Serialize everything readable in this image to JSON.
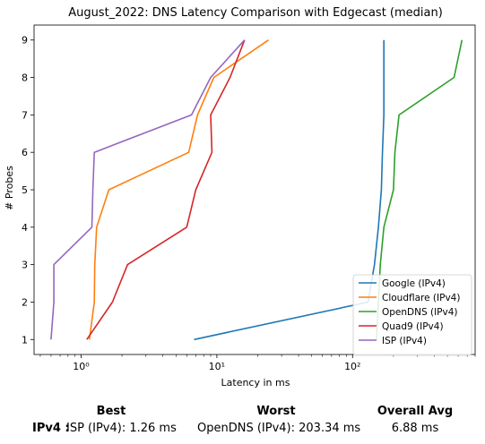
{
  "chart_data": {
    "type": "line",
    "title": "August_2022: DNS Latency Comparison with Edgecast (median)",
    "xlabel": "Latency in ms",
    "ylabel": "# Probes",
    "xscale": "log",
    "xlim": [
      0.45,
      800
    ],
    "ylim": [
      0.6,
      9.4
    ],
    "yticks": [
      1,
      2,
      3,
      4,
      5,
      6,
      7,
      8,
      9
    ],
    "xticks": [
      {
        "value": 1,
        "label": "10⁰"
      },
      {
        "value": 10,
        "label": "10¹"
      },
      {
        "value": 100,
        "label": "10²"
      }
    ],
    "legend_position": "lower-right",
    "grid": false,
    "series": [
      {
        "name": "Google (IPv4)",
        "color": "#1f77b4",
        "points": [
          [
            6.8,
            1
          ],
          [
            130,
            2
          ],
          [
            145,
            3
          ],
          [
            155,
            4
          ],
          [
            163,
            5
          ],
          [
            166,
            6
          ],
          [
            170,
            7
          ],
          [
            170,
            8
          ],
          [
            170,
            9
          ]
        ]
      },
      {
        "name": "Cloudflare (IPv4)",
        "color": "#ff7f0e",
        "points": [
          [
            1.15,
            1
          ],
          [
            1.25,
            2
          ],
          [
            1.26,
            3
          ],
          [
            1.3,
            4
          ],
          [
            1.6,
            5
          ],
          [
            6.2,
            6
          ],
          [
            7.2,
            7
          ],
          [
            9.5,
            8
          ],
          [
            24,
            9
          ]
        ]
      },
      {
        "name": "OpenDNS (IPv4)",
        "color": "#2ca02c",
        "points": [
          [
            150,
            1
          ],
          [
            155,
            2
          ],
          [
            160,
            3
          ],
          [
            170,
            4
          ],
          [
            200,
            5
          ],
          [
            205,
            6
          ],
          [
            220,
            7
          ],
          [
            560,
            8
          ],
          [
            640,
            9
          ]
        ]
      },
      {
        "name": "Quad9 (IPv4)",
        "color": "#d62728",
        "points": [
          [
            1.1,
            1
          ],
          [
            1.7,
            2
          ],
          [
            2.2,
            3
          ],
          [
            6.0,
            4
          ],
          [
            7.0,
            5
          ],
          [
            9.2,
            6
          ],
          [
            9.0,
            7
          ],
          [
            12.5,
            8
          ],
          [
            16,
            9
          ]
        ]
      },
      {
        "name": "ISP (IPv4)",
        "color": "#9467bd",
        "points": [
          [
            0.6,
            1
          ],
          [
            0.63,
            2
          ],
          [
            0.63,
            3
          ],
          [
            1.2,
            4
          ],
          [
            1.22,
            5
          ],
          [
            1.25,
            6
          ],
          [
            6.5,
            7
          ],
          [
            9.0,
            8
          ],
          [
            16,
            9
          ]
        ]
      }
    ]
  },
  "stats": {
    "headers": {
      "best": "Best",
      "worst": "Worst",
      "avg": "Overall Avg"
    },
    "row_label": "IPv4 :",
    "best": "ISP (IPv4): 1.26 ms",
    "worst": "OpenDNS (IPv4): 203.34 ms",
    "avg": "6.88 ms"
  }
}
